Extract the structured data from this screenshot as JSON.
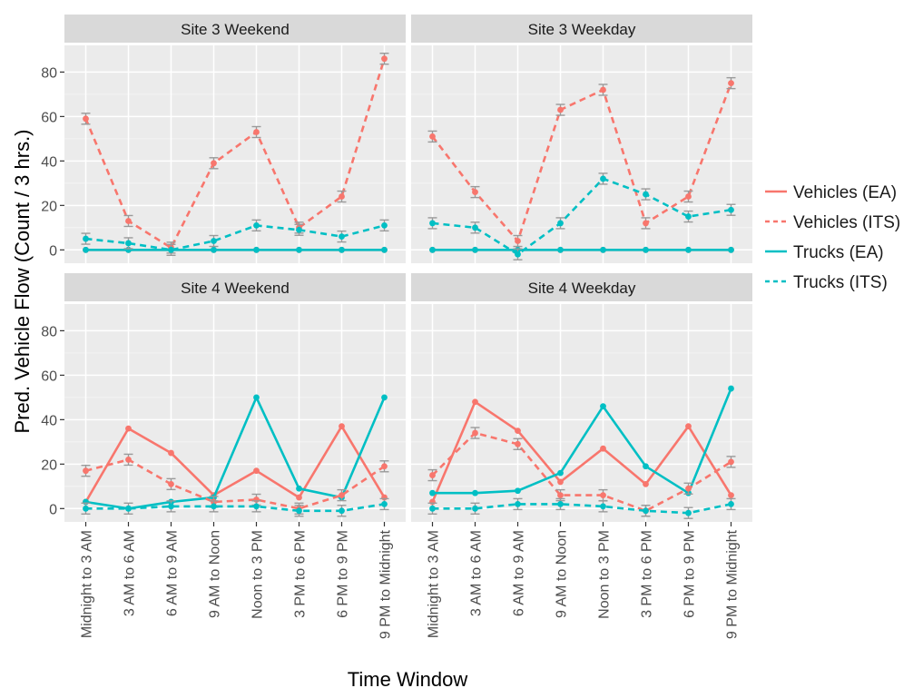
{
  "chart_data": {
    "type": "line",
    "xlabel": "Time Window",
    "ylabel": "Pred. Vehicle Flow (Count / 3 hrs.)",
    "ylim": [
      -6,
      92
    ],
    "yticks": [
      0,
      20,
      40,
      60,
      80
    ],
    "grid": true,
    "legend_position": "right",
    "categories": [
      "Midnight to 3 AM",
      "3 AM to 6 AM",
      "6 AM to 9 AM",
      "9 AM to Noon",
      "Noon to 3 PM",
      "3 PM to 6 PM",
      "6 PM to 9 PM",
      "9 PM to Midnight"
    ],
    "legend": [
      {
        "name": "Vehicles (EA)",
        "color": "#F8766D",
        "dash": "solid"
      },
      {
        "name": "Vehicles (ITS)",
        "color": "#F8766D",
        "dash": "dashed"
      },
      {
        "name": "Trucks (EA)",
        "color": "#00BFC4",
        "dash": "solid"
      },
      {
        "name": "Trucks (ITS)",
        "color": "#00BFC4",
        "dash": "dashed"
      }
    ],
    "panels": [
      {
        "title": "Site 3 Weekend",
        "series": [
          {
            "name": "Vehicles (EA)",
            "values": [
              0,
              0,
              0,
              0,
              0,
              0,
              0,
              0
            ]
          },
          {
            "name": "Trucks (EA)",
            "values": [
              0,
              0,
              0,
              0,
              0,
              0,
              0,
              0
            ]
          },
          {
            "name": "Vehicles (ITS)",
            "values": [
              59,
              13,
              1,
              39,
              53,
              10,
              24,
              86
            ]
          },
          {
            "name": "Trucks (ITS)",
            "values": [
              5,
              3,
              0,
              4,
              11,
              9,
              6,
              11
            ]
          }
        ]
      },
      {
        "title": "Site 3 Weekday",
        "series": [
          {
            "name": "Vehicles (EA)",
            "values": [
              0,
              0,
              0,
              0,
              0,
              0,
              0,
              0
            ]
          },
          {
            "name": "Trucks (EA)",
            "values": [
              0,
              0,
              0,
              0,
              0,
              0,
              0,
              0
            ]
          },
          {
            "name": "Vehicles (ITS)",
            "values": [
              51,
              26,
              4,
              63,
              72,
              12,
              24,
              75
            ]
          },
          {
            "name": "Trucks (ITS)",
            "values": [
              12,
              10,
              -2,
              12,
              32,
              25,
              15,
              18
            ]
          }
        ]
      },
      {
        "title": "Site 4 Weekend",
        "series": [
          {
            "name": "Vehicles (EA)",
            "values": [
              3,
              36,
              25,
              6,
              17,
              5,
              37,
              5
            ]
          },
          {
            "name": "Trucks (EA)",
            "values": [
              3,
              0,
              3,
              5,
              50,
              9,
              5,
              50
            ]
          },
          {
            "name": "Vehicles (ITS)",
            "values": [
              17,
              22,
              11,
              3,
              4,
              0,
              6,
              19
            ]
          },
          {
            "name": "Trucks (ITS)",
            "values": [
              0,
              0,
              1,
              1,
              1,
              -1,
              -1,
              2
            ]
          }
        ]
      },
      {
        "title": "Site 4 Weekday",
        "series": [
          {
            "name": "Vehicles (EA)",
            "values": [
              3,
              48,
              35,
              12,
              27,
              11,
              37,
              6
            ]
          },
          {
            "name": "Trucks (EA)",
            "values": [
              7,
              7,
              8,
              16,
              46,
              19,
              7,
              54
            ]
          },
          {
            "name": "Vehicles (ITS)",
            "values": [
              15,
              34,
              29,
              6,
              6,
              -1,
              9,
              21
            ]
          },
          {
            "name": "Trucks (ITS)",
            "values": [
              0,
              0,
              2,
              2,
              1,
              -1,
              -2,
              2
            ]
          }
        ]
      }
    ]
  }
}
